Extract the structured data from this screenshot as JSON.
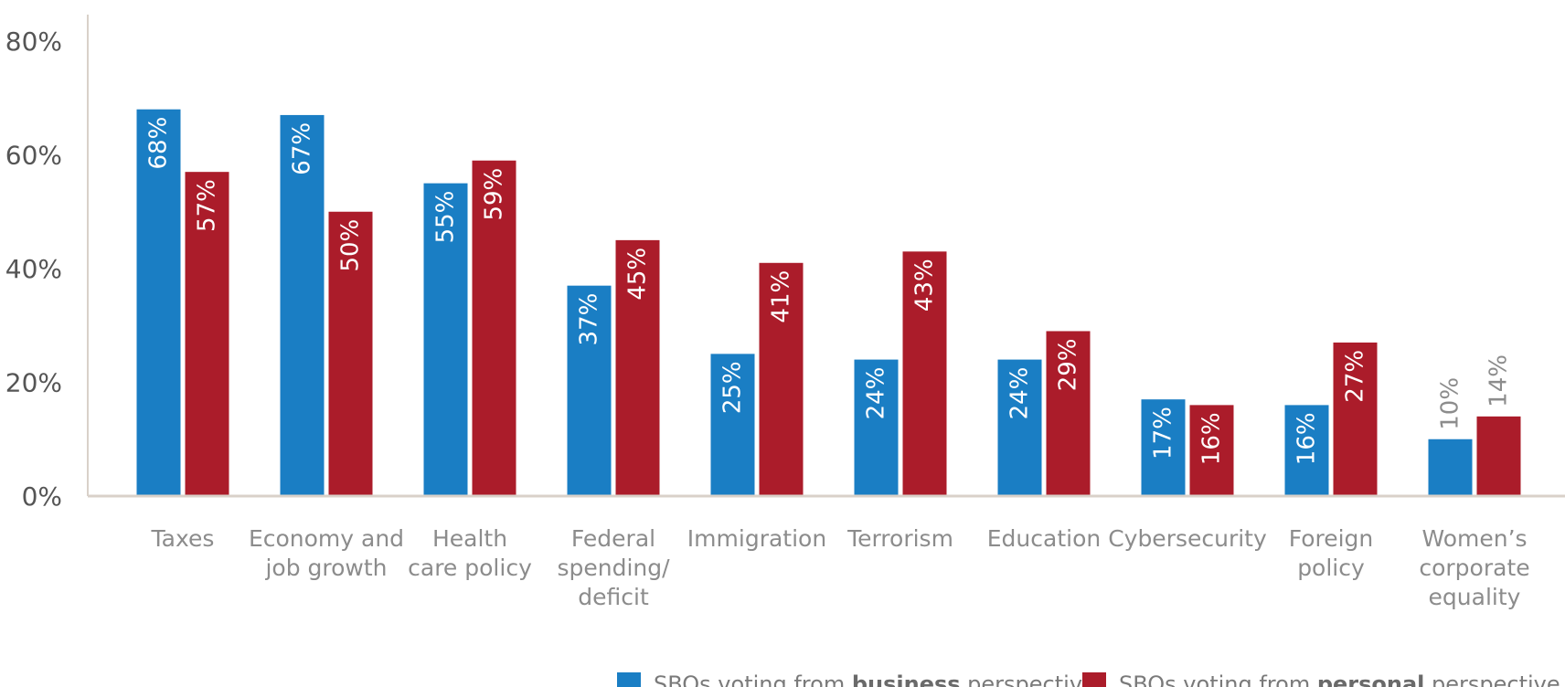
{
  "chart_data": {
    "type": "bar",
    "categories": [
      [
        "Taxes"
      ],
      [
        "Economy and",
        "job growth"
      ],
      [
        "Health",
        "care policy"
      ],
      [
        "Federal",
        "spending/",
        "deficit"
      ],
      [
        "Immigration"
      ],
      [
        "Terrorism"
      ],
      [
        "Education"
      ],
      [
        "Cybersecurity"
      ],
      [
        "Foreign",
        "policy"
      ],
      [
        "Women’s",
        "corporate",
        "equality"
      ]
    ],
    "series": [
      {
        "color": "#1a7ec4",
        "values": [
          68,
          67,
          55,
          37,
          25,
          24,
          24,
          17,
          16,
          10
        ],
        "labels": [
          "68%",
          "67%",
          "55%",
          "37%",
          "25%",
          "24%",
          "24%",
          "17%",
          "16%",
          "10%"
        ],
        "legend": {
          "prefix": "SBOs voting from ",
          "bold": "business",
          "suffix": " perspective"
        }
      },
      {
        "color": "#ab1c2a",
        "values": [
          57,
          50,
          59,
          45,
          41,
          43,
          29,
          16,
          27,
          14
        ],
        "labels": [
          "57%",
          "50%",
          "59%",
          "45%",
          "41%",
          "43%",
          "29%",
          "16%",
          "27%",
          "14%"
        ],
        "legend": {
          "prefix": "SBOs voting from ",
          "bold": "personal",
          "suffix": " perspective"
        }
      }
    ],
    "ylim": [
      0,
      85
    ],
    "yticks": [
      0,
      20,
      40,
      60,
      80
    ],
    "ytick_labels": [
      "0%",
      "20%",
      "40%",
      "60%",
      "80%"
    ],
    "grid": false,
    "legend_position": "bottom-right",
    "outside_label_color": "#8c8c8c",
    "axis_color": "#d9d1c9"
  }
}
